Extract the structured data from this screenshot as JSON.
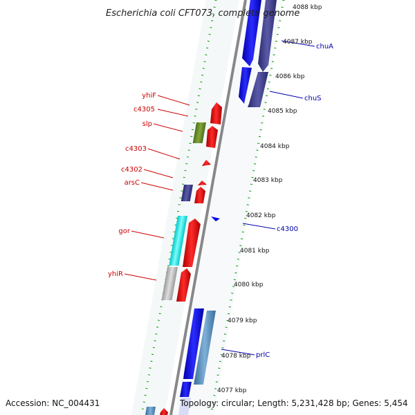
{
  "title": "Escherichia coli CFT073, complete genome",
  "accession": "Accession: NC_004431",
  "topology": "Topology: circular; Length: 5,231,428 bp; Genes: 5,454",
  "tick_labels": [
    "4088 kbp",
    "4087 kbp",
    "4086 kbp",
    "4085 kbp",
    "4084 kbp",
    "4083 kbp",
    "4082 kbp",
    "4081 kbp",
    "4080 kbp",
    "4079 kbp",
    "4078 kbp",
    "4077 kbp"
  ],
  "genes_left": [
    "yhiF",
    "c4305",
    "slp",
    "c4303",
    "c4302",
    "arsC",
    "gor",
    "yhiR"
  ],
  "genes_right": [
    "chuA",
    "chuS",
    "c4300",
    "prlC"
  ],
  "colors": {
    "forward_gene": "#ff0000",
    "reverse_gene": "#0000ff",
    "left_label": "#cc0000",
    "right_label": "#0000aa",
    "tick_dots": "#009900",
    "backbone": "#888888"
  }
}
